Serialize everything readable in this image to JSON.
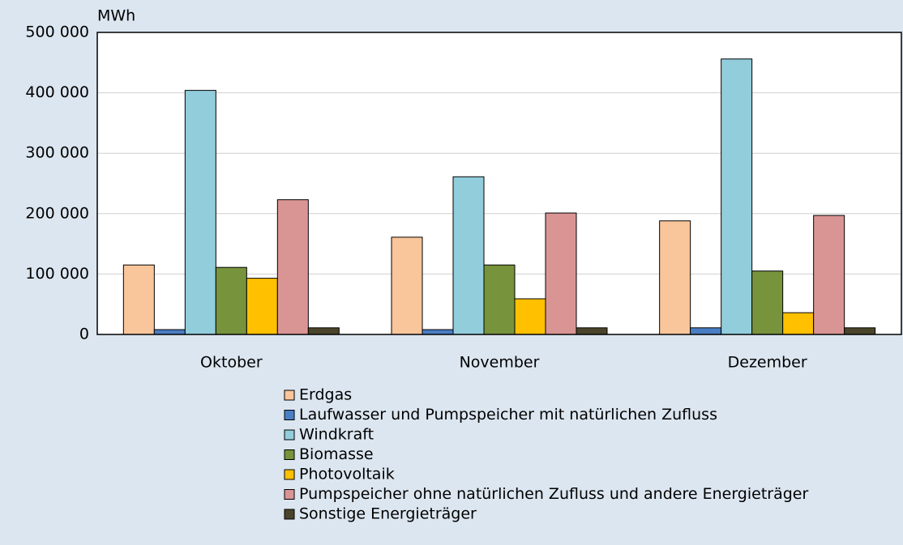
{
  "chart_data": {
    "type": "bar",
    "y_label": "MWh",
    "categories": [
      "Oktober",
      "November",
      "Dezember"
    ],
    "series": [
      {
        "name": "Erdgas",
        "color": "#f9c59a",
        "values": [
          115000,
          161000,
          188000
        ]
      },
      {
        "name": "Laufwasser und Pumpspeicher mit natürlichen Zufluss",
        "color": "#4a7ec4",
        "values": [
          8000,
          8000,
          11000
        ]
      },
      {
        "name": "Windkraft",
        "color": "#92cddc",
        "values": [
          404000,
          261000,
          456000
        ]
      },
      {
        "name": "Biomasse",
        "color": "#77933c",
        "values": [
          111000,
          115000,
          105000
        ]
      },
      {
        "name": "Photovoltaik",
        "color": "#ffc000",
        "values": [
          93000,
          59000,
          36000
        ]
      },
      {
        "name": "Pumpspeicher ohne natürlichen Zufluss und andere Energieträger",
        "color": "#d99594",
        "values": [
          223000,
          201000,
          197000
        ]
      },
      {
        "name": "Sonstige Energieträger",
        "color": "#4a452a",
        "values": [
          11000,
          11000,
          11000
        ]
      }
    ],
    "ylim": [
      0,
      500000
    ],
    "yticks": [
      0,
      {
        "value": 100000,
        "label": "100 000"
      },
      {
        "value": 200000,
        "label": "200 000"
      },
      {
        "value": 300000,
        "label": "300 000"
      },
      {
        "value": 400000,
        "label": "400 000"
      },
      {
        "value": 500000,
        "label": "500 000"
      }
    ],
    "grid": true
  }
}
